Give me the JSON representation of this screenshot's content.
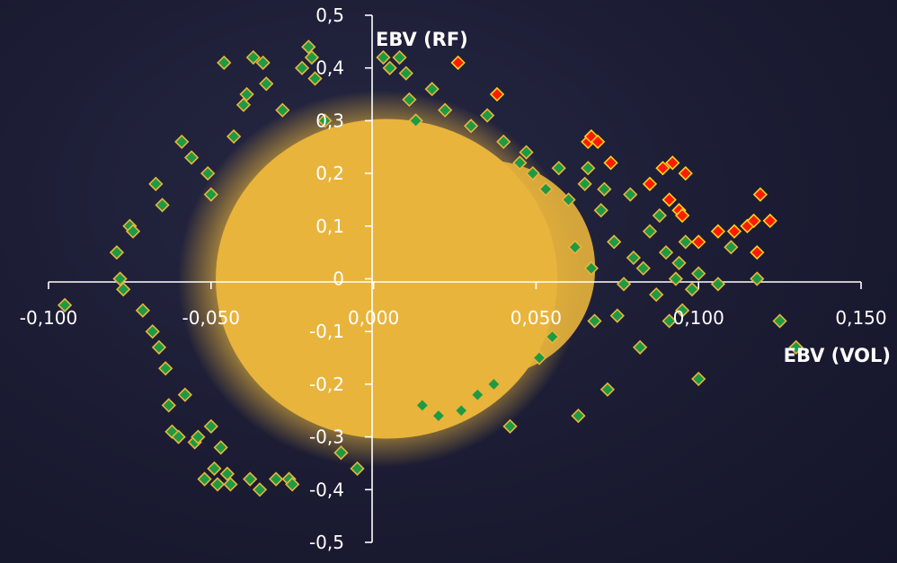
{
  "chart_data": {
    "type": "scatter",
    "xlabel": "EBV (VOL)",
    "ylabel": "EBV (RF)",
    "xlim": [
      -0.1,
      0.15
    ],
    "ylim": [
      -0.5,
      0.5
    ],
    "x_ticks": [
      "-0,100",
      "-0,050",
      "0,000",
      "0,050",
      "0,100",
      "0,150"
    ],
    "y_ticks": [
      "0,5",
      "0,4",
      "0,3",
      "0,2",
      "0,1",
      "0",
      "-0,1",
      "-0,2",
      "-0,3",
      "-0,4",
      "-0,5"
    ],
    "grid": false,
    "colors": {
      "cloud_fill": "#e8b43c",
      "green_fill": "#1e9a44",
      "green_edge": "#e8b43c",
      "red_fill": "#ff1a00",
      "red_edge": "#ffd21e"
    },
    "series": [
      {
        "points": [
          [
            -0.095,
            -0.05
          ],
          [
            -0.079,
            0.05
          ],
          [
            -0.077,
            -0.02
          ],
          [
            -0.078,
            0.0
          ],
          [
            -0.075,
            0.1
          ],
          [
            -0.074,
            0.09
          ],
          [
            -0.071,
            -0.06
          ],
          [
            -0.068,
            -0.1
          ],
          [
            -0.067,
            0.18
          ],
          [
            -0.066,
            -0.13
          ],
          [
            -0.065,
            0.14
          ],
          [
            -0.064,
            -0.17
          ],
          [
            -0.063,
            -0.24
          ],
          [
            -0.062,
            -0.29
          ],
          [
            -0.06,
            -0.3
          ],
          [
            -0.059,
            0.26
          ],
          [
            -0.058,
            -0.22
          ],
          [
            -0.056,
            0.23
          ],
          [
            -0.055,
            -0.31
          ],
          [
            -0.054,
            -0.3
          ],
          [
            -0.052,
            -0.38
          ],
          [
            -0.051,
            0.2
          ],
          [
            -0.05,
            0.16
          ],
          [
            -0.05,
            -0.28
          ],
          [
            -0.049,
            -0.36
          ],
          [
            -0.048,
            -0.39
          ],
          [
            -0.047,
            -0.32
          ],
          [
            -0.046,
            0.41
          ],
          [
            -0.045,
            -0.37
          ],
          [
            -0.044,
            -0.39
          ],
          [
            -0.043,
            0.27
          ],
          [
            -0.04,
            0.33
          ],
          [
            -0.039,
            0.35
          ],
          [
            -0.038,
            -0.38
          ],
          [
            -0.037,
            0.42
          ],
          [
            -0.035,
            -0.4
          ],
          [
            -0.034,
            0.41
          ],
          [
            -0.033,
            0.37
          ],
          [
            -0.03,
            -0.38
          ],
          [
            -0.028,
            0.32
          ],
          [
            -0.026,
            -0.38
          ],
          [
            -0.025,
            -0.39
          ],
          [
            -0.022,
            0.4
          ],
          [
            -0.02,
            0.44
          ],
          [
            -0.019,
            0.42
          ],
          [
            -0.018,
            0.38
          ],
          [
            -0.015,
            0.3
          ],
          [
            -0.01,
            -0.33
          ],
          [
            -0.005,
            -0.36
          ],
          [
            0.003,
            0.42
          ],
          [
            0.005,
            0.4
          ],
          [
            0.008,
            0.42
          ],
          [
            0.01,
            0.39
          ],
          [
            0.011,
            0.34
          ],
          [
            0.013,
            0.3
          ],
          [
            0.015,
            -0.24
          ],
          [
            0.018,
            0.36
          ],
          [
            0.02,
            -0.26
          ],
          [
            0.022,
            0.32
          ],
          [
            0.027,
            -0.25
          ],
          [
            0.03,
            0.29
          ],
          [
            0.032,
            -0.22
          ],
          [
            0.035,
            0.31
          ],
          [
            0.037,
            -0.2
          ],
          [
            0.04,
            0.26
          ],
          [
            0.042,
            -0.28
          ],
          [
            0.045,
            0.22
          ],
          [
            0.047,
            0.24
          ],
          [
            0.049,
            0.2
          ],
          [
            0.051,
            -0.15
          ],
          [
            0.053,
            0.17
          ],
          [
            0.055,
            -0.11
          ],
          [
            0.057,
            0.21
          ],
          [
            0.06,
            0.15
          ],
          [
            0.062,
            0.06
          ],
          [
            0.063,
            -0.26
          ],
          [
            0.065,
            0.18
          ],
          [
            0.066,
            0.21
          ],
          [
            0.067,
            0.02
          ],
          [
            0.068,
            -0.08
          ],
          [
            0.07,
            0.13
          ],
          [
            0.071,
            0.17
          ],
          [
            0.072,
            -0.21
          ],
          [
            0.074,
            0.07
          ],
          [
            0.075,
            -0.07
          ],
          [
            0.077,
            -0.01
          ],
          [
            0.079,
            0.16
          ],
          [
            0.08,
            0.04
          ],
          [
            0.082,
            -0.13
          ],
          [
            0.083,
            0.02
          ],
          [
            0.085,
            0.09
          ],
          [
            0.087,
            -0.03
          ],
          [
            0.088,
            0.12
          ],
          [
            0.09,
            0.05
          ],
          [
            0.091,
            -0.08
          ],
          [
            0.093,
            0.0
          ],
          [
            0.094,
            0.03
          ],
          [
            0.095,
            -0.06
          ],
          [
            0.096,
            0.07
          ],
          [
            0.098,
            -0.02
          ],
          [
            0.1,
            0.01
          ],
          [
            0.1,
            -0.19
          ],
          [
            0.106,
            -0.01
          ],
          [
            0.11,
            0.06
          ],
          [
            0.118,
            0.0
          ],
          [
            0.125,
            -0.08
          ],
          [
            0.13,
            -0.13
          ]
        ]
      },
      {
        "points": [
          [
            0.026,
            0.41
          ],
          [
            0.038,
            0.35
          ],
          [
            0.066,
            0.26
          ],
          [
            0.067,
            0.27
          ],
          [
            0.069,
            0.26
          ],
          [
            0.073,
            0.22
          ],
          [
            0.085,
            0.18
          ],
          [
            0.089,
            0.21
          ],
          [
            0.092,
            0.22
          ],
          [
            0.096,
            0.2
          ],
          [
            0.091,
            0.15
          ],
          [
            0.094,
            0.13
          ],
          [
            0.095,
            0.12
          ],
          [
            0.1,
            0.07
          ],
          [
            0.106,
            0.09
          ],
          [
            0.111,
            0.09
          ],
          [
            0.115,
            0.1
          ],
          [
            0.117,
            0.11
          ],
          [
            0.119,
            0.16
          ],
          [
            0.122,
            0.11
          ],
          [
            0.118,
            0.05
          ]
        ]
      }
    ]
  }
}
